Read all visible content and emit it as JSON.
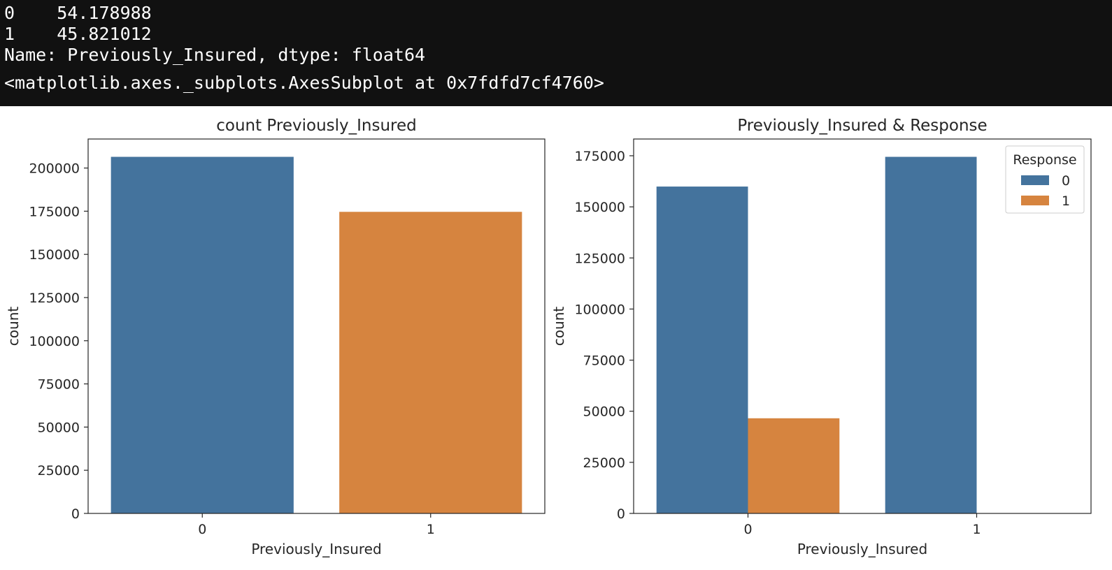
{
  "console": {
    "lines": [
      "0    54.178988",
      "1    45.821012",
      "Name: Previously_Insured, dtype: float64",
      "<matplotlib.axes._subplots.AxesSubplot at 0x7fdfd7cf4760>"
    ]
  },
  "colors": {
    "blue": "#44739D",
    "orange": "#D6843F",
    "axis": "#262626"
  },
  "chart_data": [
    {
      "type": "bar",
      "title": "count Previously_Insured",
      "xlabel": "Previously_Insured",
      "ylabel": "count",
      "categories": [
        "0",
        "1"
      ],
      "values": [
        206481,
        174628
      ],
      "bar_colors": [
        "#44739D",
        "#D6843F"
      ],
      "ylim": [
        0,
        216805
      ],
      "yticks": [
        0,
        25000,
        50000,
        75000,
        100000,
        125000,
        150000,
        175000,
        200000
      ],
      "grid": false
    },
    {
      "type": "bar",
      "title": "Previously_Insured & Response",
      "xlabel": "Previously_Insured",
      "ylabel": "count",
      "categories": [
        "0",
        "1"
      ],
      "series": [
        {
          "name": "0",
          "values": [
            159929,
            174470
          ],
          "color": "#44739D"
        },
        {
          "name": "1",
          "values": [
            46552,
            158
          ],
          "color": "#D6843F"
        }
      ],
      "ylim": [
        0,
        183194
      ],
      "yticks": [
        0,
        25000,
        50000,
        75000,
        100000,
        125000,
        150000,
        175000
      ],
      "legend_title": "Response",
      "legend_position": "top-right",
      "grid": false
    }
  ]
}
